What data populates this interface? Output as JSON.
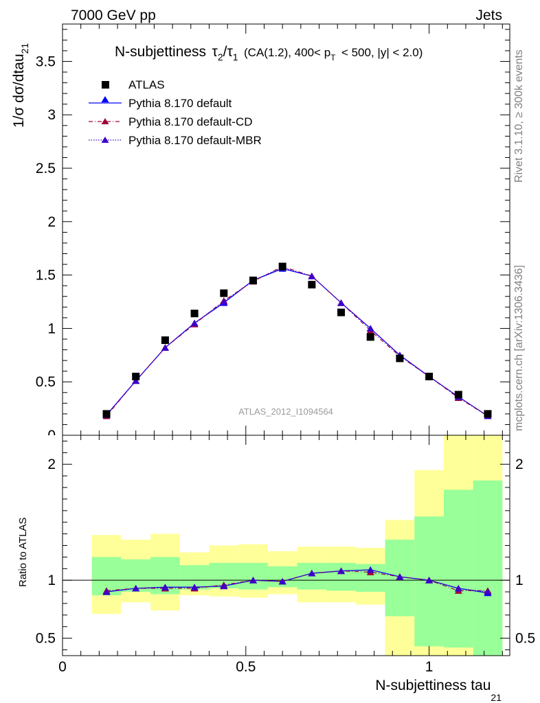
{
  "header": {
    "left": "7000 GeV pp",
    "right": "Jets"
  },
  "title": {
    "prefix": "N-subjettiness",
    "tau_a_sub": "2",
    "tau_b_sub": "1",
    "cuts_a": "(CA(1.2), 400< p",
    "cuts_sub": "T",
    "cuts_b": "< 500, |y| < 2.0)"
  },
  "side": {
    "rivet": "Rivet 3.1.10, ≥ 300k events",
    "mcplots": "mcplots.cern.ch [arXiv:1306.3436]"
  },
  "watermark": "ATLAS_2012_I1094564",
  "axes": {
    "ylabel_main": "1/σ dσ/dtau",
    "ylabel_main_sub": "21",
    "ylabel_ratio": "Ratio to ATLAS",
    "xlabel": "N-subjettiness tau",
    "xlabel_sub": "21"
  },
  "colors": {
    "data": "#000000",
    "default": "#0000ff",
    "cd": "#a0003c",
    "mbr": "#3c00c8",
    "band_inner": "#99ff99",
    "band_outer": "#ffff99"
  },
  "chart_data": [
    {
      "type": "scatter",
      "panel": "main",
      "xlim": [
        0,
        1.22
      ],
      "ylim": [
        0,
        3.85
      ],
      "xticks": [
        0,
        0.5,
        1
      ],
      "yticks": [
        0.5,
        1,
        1.5,
        2,
        2.5,
        3,
        3.5
      ],
      "ytick_labels": [
        "0.5",
        "1",
        "1.5",
        "2",
        "2.5",
        "3",
        "3.5"
      ],
      "legend_position": "top-left",
      "x": [
        0.12,
        0.2,
        0.28,
        0.36,
        0.44,
        0.52,
        0.6,
        0.68,
        0.76,
        0.84,
        0.92,
        1.0,
        1.08,
        1.16
      ],
      "series": [
        {
          "name": "ATLAS",
          "style": "square",
          "values": [
            0.2,
            0.55,
            0.89,
            1.14,
            1.33,
            1.45,
            1.58,
            1.41,
            1.15,
            0.92,
            0.72,
            0.55,
            0.38,
            0.2
          ]
        },
        {
          "name": "Pythia 8.170 default",
          "style": "solid",
          "values": [
            0.19,
            0.51,
            0.82,
            1.05,
            1.24,
            1.45,
            1.56,
            1.49,
            1.24,
            1.0,
            0.75,
            0.55,
            0.36,
            0.18
          ]
        },
        {
          "name": "Pythia 8.170 default-CD",
          "style": "dashdot",
          "values": [
            0.18,
            0.51,
            0.82,
            1.04,
            1.26,
            1.44,
            1.58,
            1.49,
            1.24,
            0.98,
            0.74,
            0.55,
            0.35,
            0.18
          ]
        },
        {
          "name": "Pythia 8.170 default-MBR",
          "style": "dotted",
          "values": [
            0.19,
            0.51,
            0.82,
            1.05,
            1.25,
            1.45,
            1.57,
            1.49,
            1.24,
            1.0,
            0.75,
            0.55,
            0.36,
            0.18
          ]
        }
      ]
    },
    {
      "type": "line",
      "panel": "ratio",
      "xlim": [
        0,
        1.22
      ],
      "ylim": [
        0.35,
        2.25
      ],
      "xticks": [
        0,
        0.5,
        1
      ],
      "xtick_labels": [
        "0",
        "0.5",
        "1"
      ],
      "yticks": [
        0.5,
        1,
        2
      ],
      "ytick_labels": [
        "0.5",
        "1",
        "2"
      ],
      "x": [
        0.12,
        0.2,
        0.28,
        0.36,
        0.44,
        0.52,
        0.6,
        0.68,
        0.76,
        0.84,
        0.92,
        1.0,
        1.08,
        1.16
      ],
      "bin_edges": [
        0.08,
        0.16,
        0.24,
        0.32,
        0.4,
        0.48,
        0.56,
        0.64,
        0.72,
        0.8,
        0.88,
        0.96,
        1.04,
        1.12,
        1.2
      ],
      "band_inner": {
        "low": [
          0.87,
          0.9,
          0.88,
          0.92,
          0.93,
          0.92,
          0.94,
          0.92,
          0.91,
          0.9,
          0.35,
          0.35,
          0.35,
          0.35
        ],
        "high": [
          1.2,
          1.18,
          1.2,
          1.13,
          1.15,
          1.15,
          1.12,
          1.15,
          1.15,
          1.14,
          1.35,
          1.55,
          1.78,
          1.86
        ]
      },
      "band_outer": {
        "low": [
          0.71,
          0.81,
          0.74,
          0.87,
          0.86,
          0.85,
          0.88,
          0.81,
          0.81,
          0.79,
          0.35,
          0.35,
          0.35,
          0.35
        ],
        "high": [
          1.39,
          1.35,
          1.4,
          1.24,
          1.3,
          1.31,
          1.25,
          1.29,
          1.29,
          1.28,
          1.52,
          1.95,
          2.25,
          2.25
        ]
      },
      "band_extra_outer": [
        {
          "x0": 0.88,
          "x1": 0.96,
          "low": 0.35,
          "high": 0.69
        },
        {
          "x0": 0.96,
          "x1": 1.04,
          "low": 0.35,
          "high": 0.43
        },
        {
          "x0": 1.04,
          "x1": 1.12,
          "low": 0.35,
          "high": 0.42
        }
      ],
      "series": [
        {
          "name": "Pythia 8.170 default",
          "style": "solid",
          "values": [
            0.9,
            0.93,
            0.94,
            0.94,
            0.95,
            1.0,
            0.99,
            1.06,
            1.08,
            1.09,
            1.03,
            1.0,
            0.93,
            0.89
          ]
        },
        {
          "name": "Pythia 8.170 default-CD",
          "style": "dashdot",
          "values": [
            0.91,
            0.93,
            0.93,
            0.93,
            0.96,
            1.0,
            0.99,
            1.06,
            1.08,
            1.07,
            1.03,
            1.0,
            0.91,
            0.91
          ]
        },
        {
          "name": "Pythia 8.170 default-MBR",
          "style": "dotted",
          "values": [
            0.9,
            0.93,
            0.94,
            0.94,
            0.95,
            1.0,
            0.99,
            1.06,
            1.08,
            1.09,
            1.03,
            1.0,
            0.93,
            0.9
          ]
        }
      ]
    }
  ]
}
